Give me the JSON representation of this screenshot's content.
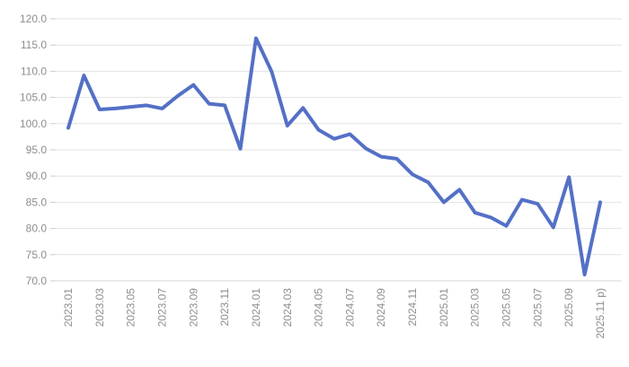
{
  "chart_data": {
    "type": "line",
    "title": "",
    "xlabel": "",
    "ylabel": "",
    "x": [
      "2023.01",
      "2023.02",
      "2023.03",
      "2023.04",
      "2023.05",
      "2023.06",
      "2023.07",
      "2023.08",
      "2023.09",
      "2023.10",
      "2023.11",
      "2023.12",
      "2024.01",
      "2024.02",
      "2024.03",
      "2024.04",
      "2024.05",
      "2024.06",
      "2024.07",
      "2024.08",
      "2024.09",
      "2024.10",
      "2024.11",
      "2024.12",
      "2025.01",
      "2025.02",
      "2025.03",
      "2025.04",
      "2025.05",
      "2025.06",
      "2025.07",
      "2025.08",
      "2025.09",
      "2025.10",
      "2025.11"
    ],
    "values": [
      99.2,
      109.2,
      102.7,
      102.9,
      103.2,
      103.5,
      102.9,
      105.3,
      107.4,
      103.8,
      103.5,
      95.2,
      116.3,
      109.9,
      99.6,
      103.0,
      98.8,
      97.1,
      98.0,
      95.3,
      93.7,
      93.3,
      90.3,
      88.8,
      85.0,
      87.4,
      83.0,
      82.1,
      80.5,
      85.5,
      84.7,
      80.2,
      89.8,
      71.2,
      85.0
    ],
    "x_tick_labels": [
      "2023.01",
      "2023.03",
      "2023.05",
      "2023.07",
      "2023.09",
      "2023.11",
      "2024.01",
      "2024.03",
      "2024.05",
      "2024.07",
      "2024.09",
      "2024.11",
      "2025.01",
      "2025.03",
      "2025.05",
      "2025.07",
      "2025.09",
      "2025.11 p)"
    ],
    "x_tick_every": 2,
    "y_tick_labels": [
      "120.0",
      "115.0",
      "110.0",
      "105.0",
      "100.0",
      "95.0",
      "90.0",
      "85.0",
      "80.0",
      "75.0",
      "70.0"
    ],
    "y_tick_values": [
      120,
      115,
      110,
      105,
      100,
      95,
      90,
      85,
      80,
      75,
      70
    ],
    "ylim": [
      70,
      120
    ],
    "grid": true,
    "legend": false,
    "colors": {
      "line": "#5470c6",
      "gridline": "#e2e2e2",
      "axis_line": "#d4d4d4",
      "tick": "#cccccc",
      "label": "#8e8e8e",
      "background": "#ffffff"
    },
    "line_width": 4
  }
}
